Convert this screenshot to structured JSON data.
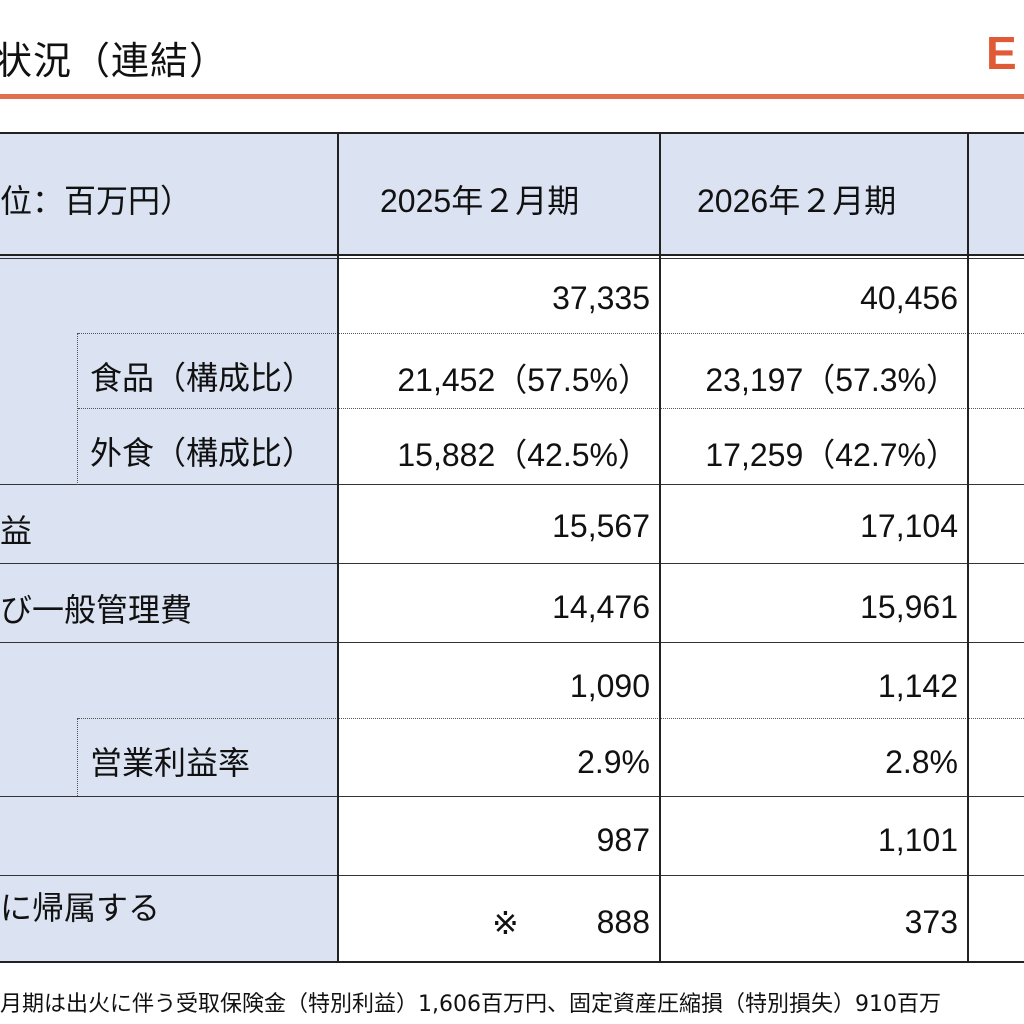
{
  "header": {
    "title": "状況（連結）",
    "logo_text": "E"
  },
  "colors": {
    "accent": "#e05a37",
    "label_bg": "#dbe3f3"
  },
  "table": {
    "unit_header": "位：百万円）",
    "columns": [
      "2025年２月期",
      "2026年２月期"
    ],
    "rows": [
      {
        "label": "",
        "values": [
          "37,335",
          "40,456"
        ]
      },
      {
        "label": "食品（構成比）",
        "values": [
          "21,452（57.5%）",
          "23,197（57.3%）"
        ]
      },
      {
        "label": "外食（構成比）",
        "values": [
          "15,882（42.5%）",
          "17,259（42.7%）"
        ]
      },
      {
        "label": "益",
        "values": [
          "15,567",
          "17,104"
        ]
      },
      {
        "label": "び一般管理費",
        "values": [
          "14,476",
          "15,961"
        ]
      },
      {
        "label": "",
        "values": [
          "1,090",
          "1,142"
        ]
      },
      {
        "label": "営業利益率",
        "values": [
          "2.9%",
          "2.8%"
        ]
      },
      {
        "label": "",
        "values": [
          "987",
          "1,101"
        ]
      },
      {
        "label": "に帰属する",
        "values": [
          "888",
          "373"
        ]
      }
    ],
    "asterisk": "※"
  },
  "footnote": "月期は出火に伴う受取保険金（特別利益）1,606百万円、固定資産圧縮損（特別損失）910百万"
}
